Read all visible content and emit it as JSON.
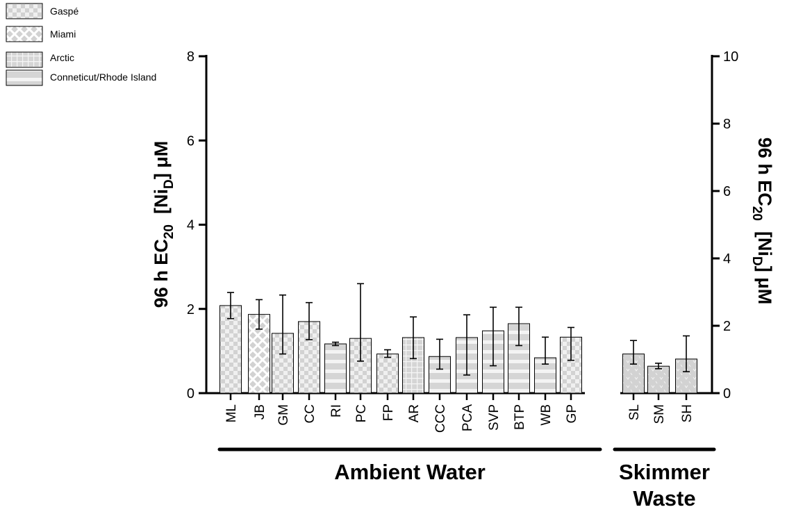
{
  "chart_data": {
    "type": "bar",
    "categories": [
      "ML",
      "JB",
      "GM",
      "CC",
      "RI",
      "PC",
      "FP",
      "AR",
      "CCC",
      "PCA",
      "SVP",
      "BTP",
      "WB",
      "GP",
      "SL",
      "SM",
      "SH"
    ],
    "values": [
      2.08,
      1.87,
      1.42,
      1.7,
      1.17,
      1.3,
      0.93,
      1.32,
      0.87,
      1.32,
      1.48,
      1.65,
      0.84,
      1.33,
      0.93,
      0.64,
      0.81
    ],
    "error_low": [
      1.77,
      1.52,
      0.93,
      1.27,
      1.13,
      0.76,
      0.85,
      0.82,
      0.57,
      0.43,
      0.65,
      1.13,
      0.69,
      0.78,
      0.69,
      0.58,
      0.51
    ],
    "error_high": [
      2.39,
      2.22,
      2.33,
      2.15,
      1.21,
      2.6,
      1.03,
      1.81,
      1.28,
      1.86,
      2.04,
      2.04,
      1.33,
      1.56,
      1.25,
      0.71,
      1.36
    ],
    "patterns": [
      "gaspe",
      "miami",
      "gaspe",
      "gaspe",
      "conn",
      "gaspe",
      "gaspe",
      "arctic",
      "conn",
      "conn",
      "conn",
      "conn",
      "conn",
      "gaspe",
      "skimmer",
      "skimmer",
      "skimmer"
    ],
    "groups": [
      {
        "label_lines": [
          "Ambient Water"
        ],
        "from": 0,
        "to": 13
      },
      {
        "label_lines": [
          "Skimmer",
          "Waste"
        ],
        "from": 14,
        "to": 16
      }
    ],
    "ylim": [
      0,
      8
    ],
    "yticks": [
      "0",
      "2",
      "4",
      "6",
      "8"
    ],
    "ylim_right": [
      0,
      10
    ],
    "yticks_right": [
      "0",
      "2",
      "4",
      "6",
      "8",
      "10"
    ],
    "ylabel": {
      "prefix": "96 h EC",
      "sub": "20",
      "mid": "  [Ni",
      "sub2": "D",
      "suffix": "] μM"
    },
    "legend": {
      "placement": "top-left",
      "entries": [
        {
          "label": "Gaspé",
          "pattern": "gaspe"
        },
        {
          "label": "Miami",
          "pattern": "miami"
        },
        {
          "label": "Arctic",
          "pattern": "arctic"
        },
        {
          "label": "Conneticut/Rhode Island",
          "pattern": "conn"
        }
      ]
    },
    "grid": false
  },
  "colors": {
    "bar_fill": "#d7d7d7",
    "bar_light": "#f2f2f2",
    "axis": "#000000"
  }
}
